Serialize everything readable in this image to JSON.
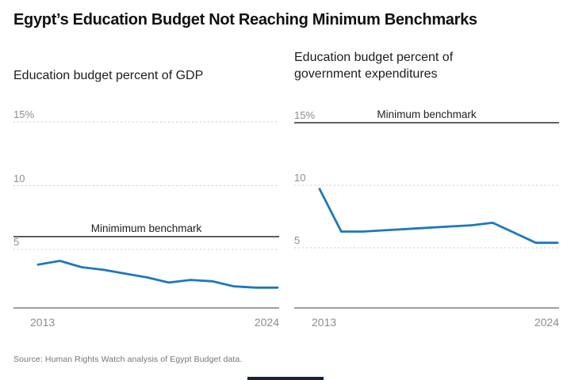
{
  "title": "Egypt’s Education Budget Not Reaching Minimum Benchmarks",
  "source": "Source: Human Rights Watch analysis of Egypt Budget data.",
  "colors": {
    "data_line": "#1d78be",
    "benchmark_line": "#2e2e2e",
    "gridline": "#cdcdcd",
    "axis_line": "#9e9e9e",
    "tick_text": "#8d8d8d",
    "bottom_bar": "#18213c"
  },
  "chart_data": [
    {
      "type": "line",
      "title": "Education budget percent of GDP",
      "x": [
        2013,
        2014,
        2015,
        2016,
        2017,
        2018,
        2019,
        2020,
        2021,
        2022,
        2023,
        2024
      ],
      "series": [
        {
          "name": "Education budget as percent of GDP",
          "values": [
            3.8,
            4.1,
            3.6,
            3.4,
            3.1,
            2.8,
            2.4,
            2.6,
            2.5,
            2.1,
            2.0,
            2.0
          ]
        }
      ],
      "benchmark": {
        "label": "Minimimum benchmark",
        "value": 6
      },
      "yticks": [
        {
          "value": 5,
          "label": "5"
        },
        {
          "value": 10,
          "label": "10"
        },
        {
          "value": 15,
          "label": "15%"
        }
      ],
      "xtick_labels": [
        "2013",
        "2024"
      ],
      "ylim": [
        0,
        16.5
      ],
      "grid": "dotted-horizontal",
      "legend": "none"
    },
    {
      "type": "line",
      "title": "Education budget percent of government expenditures",
      "x": [
        2013,
        2014,
        2015,
        2016,
        2017,
        2018,
        2019,
        2020,
        2021,
        2022,
        2023,
        2024
      ],
      "series": [
        {
          "name": "Education budget as percent of government expenditures",
          "values": [
            9.7,
            6.3,
            6.3,
            6.4,
            6.5,
            6.6,
            6.7,
            6.8,
            7.0,
            6.2,
            5.4,
            5.4
          ]
        }
      ],
      "benchmark": {
        "label": "Minimum benchmark",
        "value": 15
      },
      "yticks": [
        {
          "value": 5,
          "label": "5"
        },
        {
          "value": 10,
          "label": "10"
        },
        {
          "value": 15,
          "label": "15%"
        }
      ],
      "xtick_labels": [
        "2013",
        "2024"
      ],
      "ylim": [
        0,
        16.5
      ],
      "grid": "dotted-horizontal",
      "legend": "none"
    }
  ]
}
